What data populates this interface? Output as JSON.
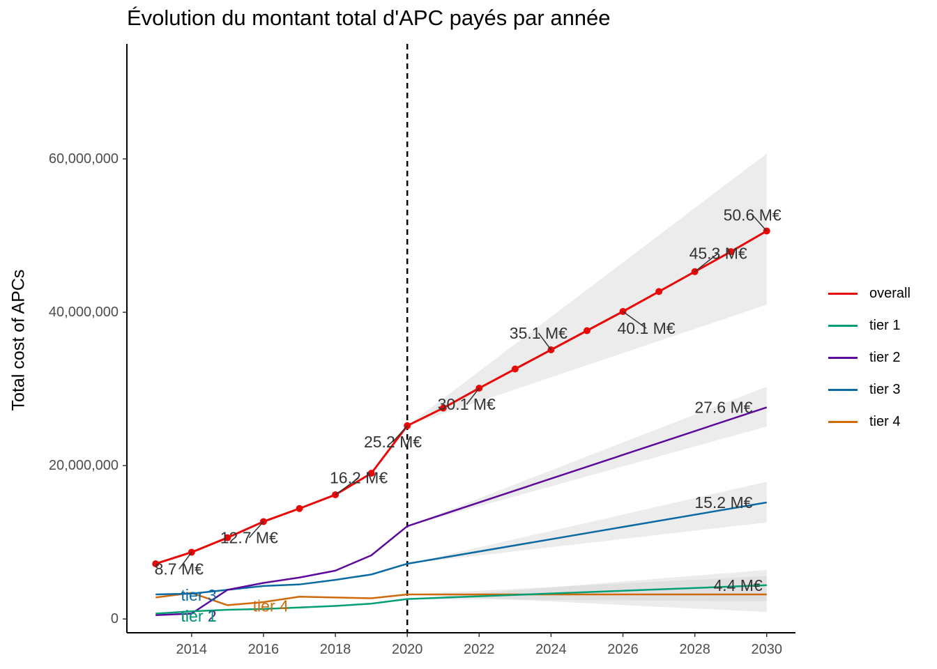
{
  "chart_data": {
    "type": "line",
    "title": "Évolution du montant total d'APC payés par année",
    "ylabel": "Total cost of APCs",
    "xlabel": "",
    "xlim": [
      2012.2,
      2030.8
    ],
    "ylim": [
      -1800000,
      75000000
    ],
    "xticks": [
      2014,
      2016,
      2018,
      2020,
      2022,
      2024,
      2026,
      2028,
      2030
    ],
    "yticks": [
      0,
      20000000,
      40000000,
      60000000
    ],
    "ytick_labels": [
      "0",
      "20,000,000",
      "40,000,000",
      "60,000,000"
    ],
    "grid": false,
    "legend_position": "right",
    "vline": {
      "x": 2020,
      "style": "dashed",
      "color": "#000000"
    },
    "series": [
      {
        "name": "overall",
        "color": "#e80808",
        "markers": true,
        "x": [
          2013,
          2014,
          2015,
          2016,
          2017,
          2018,
          2019,
          2020,
          2021,
          2022,
          2023,
          2024,
          2025,
          2026,
          2027,
          2028,
          2029,
          2030
        ],
        "y": [
          7200000,
          8700000,
          10600000,
          12700000,
          14400000,
          16200000,
          19000000,
          25200000,
          27500000,
          30100000,
          32600000,
          35100000,
          37600000,
          40100000,
          42700000,
          45300000,
          47900000,
          50600000
        ],
        "band": {
          "x": [
            2020,
            2030
          ],
          "lower": [
            25200000,
            41000000
          ],
          "upper": [
            25200000,
            60700000
          ]
        }
      },
      {
        "name": "tier 1",
        "color": "#009e73",
        "markers": false,
        "x": [
          2013,
          2014,
          2015,
          2016,
          2017,
          2018,
          2019,
          2020,
          2030
        ],
        "y": [
          700000,
          1000000,
          1200000,
          1300000,
          1500000,
          1700000,
          2000000,
          2600000,
          4400000
        ],
        "band": {
          "x": [
            2020,
            2030
          ],
          "lower": [
            2600000,
            2300000
          ],
          "upper": [
            2600000,
            6400000
          ]
        }
      },
      {
        "name": "tier 2",
        "color": "#5c0a9c",
        "markers": false,
        "x": [
          2013,
          2014,
          2015,
          2016,
          2017,
          2018,
          2019,
          2020,
          2030
        ],
        "y": [
          500000,
          700000,
          3800000,
          4700000,
          5400000,
          6300000,
          8300000,
          12100000,
          27600000
        ],
        "band": {
          "x": [
            2020,
            2030
          ],
          "lower": [
            12100000,
            25100000
          ],
          "upper": [
            12100000,
            30300000
          ]
        }
      },
      {
        "name": "tier 3",
        "color": "#0a6aa4",
        "markers": false,
        "x": [
          2013,
          2014,
          2015,
          2016,
          2017,
          2018,
          2019,
          2020,
          2030
        ],
        "y": [
          3200000,
          3300000,
          3800000,
          4300000,
          4500000,
          5100000,
          5800000,
          7200000,
          15200000
        ],
        "band": {
          "x": [
            2020,
            2030
          ],
          "lower": [
            7200000,
            12600000
          ],
          "upper": [
            7200000,
            17900000
          ]
        }
      },
      {
        "name": "tier 4",
        "color": "#cf6a0a",
        "markers": false,
        "x": [
          2013,
          2014,
          2015,
          2016,
          2017,
          2018,
          2019,
          2020,
          2030
        ],
        "y": [
          2800000,
          3400000,
          1800000,
          2200000,
          2900000,
          2800000,
          2700000,
          3200000,
          3200000
        ],
        "band": {
          "x": [
            2020,
            2030
          ],
          "lower": [
            3200000,
            900000
          ],
          "upper": [
            3200000,
            5600000
          ]
        }
      }
    ],
    "annotations": [
      {
        "text": "8.7 M€",
        "x": 2013.65,
        "y": 6500000,
        "target_x": 2014,
        "target_y": 8700000,
        "color": "#333333"
      },
      {
        "text": "12.7 M€",
        "x": 2015.6,
        "y": 10600000,
        "target_x": 2016,
        "target_y": 12700000,
        "color": "#333333"
      },
      {
        "text": "16.2 M€",
        "x": 2018.65,
        "y": 18400000,
        "target_x": 2018,
        "target_y": 16200000,
        "color": "#333333"
      },
      {
        "text": "25.2 M€",
        "x": 2019.6,
        "y": 23100000,
        "target_x": 2020,
        "target_y": 25200000,
        "color": "#333333"
      },
      {
        "text": "30.1 M€",
        "x": 2021.65,
        "y": 28000000,
        "target_x": 2022,
        "target_y": 30100000,
        "color": "#333333"
      },
      {
        "text": "35.1 M€",
        "x": 2023.65,
        "y": 37300000,
        "target_x": 2024,
        "target_y": 35100000,
        "color": "#333333"
      },
      {
        "text": "40.1 M€",
        "x": 2026.65,
        "y": 37900000,
        "target_x": 2026,
        "target_y": 40100000,
        "color": "#333333"
      },
      {
        "text": "45.3 M€",
        "x": 2028.65,
        "y": 47700000,
        "target_x": 2028,
        "target_y": 45300000,
        "color": "#333333"
      },
      {
        "text": "50.6 M€",
        "x": 2029.6,
        "y": 52700000,
        "target_x": 2030,
        "target_y": 50600000,
        "color": "#333333"
      },
      {
        "text": "27.6 M€",
        "x": 2028.8,
        "y": 27600000,
        "color": "#333333"
      },
      {
        "text": "15.2 M€",
        "x": 2028.8,
        "y": 15200000,
        "color": "#333333"
      },
      {
        "text": "4.4 M€",
        "x": 2029.2,
        "y": 4400000,
        "color": "#333333"
      },
      {
        "text": "tier 3",
        "x": 2014.2,
        "y": 3100000,
        "color": "#0a6aa4"
      },
      {
        "text": "tier 2",
        "x": 2014.2,
        "y": 400000,
        "color": "#5c0a9c"
      },
      {
        "text": "tier 1",
        "x": 2014.2,
        "y": 400000,
        "color": "#009e73"
      },
      {
        "text": "tier 4",
        "x": 2016.2,
        "y": 1700000,
        "color": "#cf6a0a"
      }
    ]
  }
}
